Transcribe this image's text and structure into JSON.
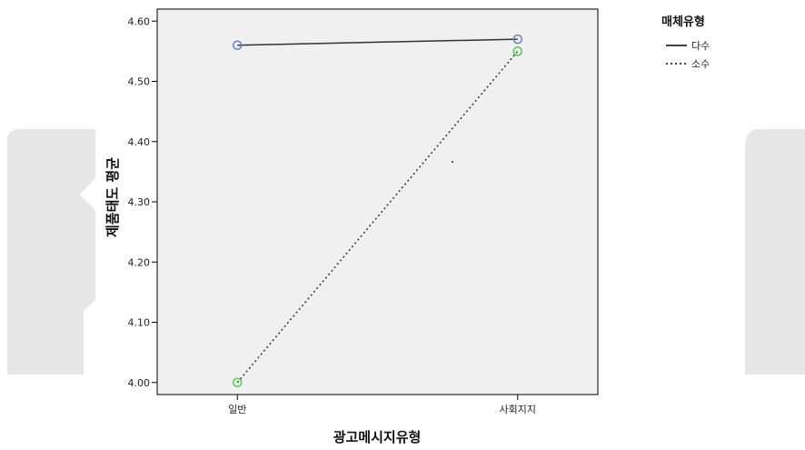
{
  "chart_data": {
    "type": "line",
    "categories": [
      "일반",
      "사회지지"
    ],
    "xlabel": "광고메시지유형",
    "ylabel": "제품태도 평균",
    "ylim": [
      3.98,
      4.62
    ],
    "yticks": [
      "4.00",
      "4.10",
      "4.20",
      "4.30",
      "4.40",
      "4.50",
      "4.60"
    ],
    "grid": false,
    "legend_title": "매체유형",
    "legend_position": "top-right",
    "series": [
      {
        "name": "다수",
        "values": [
          4.56,
          4.57
        ],
        "line_style": "solid",
        "marker_color": "#6a7fc0"
      },
      {
        "name": "소수",
        "values": [
          4.0,
          4.55
        ],
        "line_style": "dotted",
        "marker_color": "#5cc05c"
      }
    ],
    "plot_background": "#f0f0f0"
  }
}
